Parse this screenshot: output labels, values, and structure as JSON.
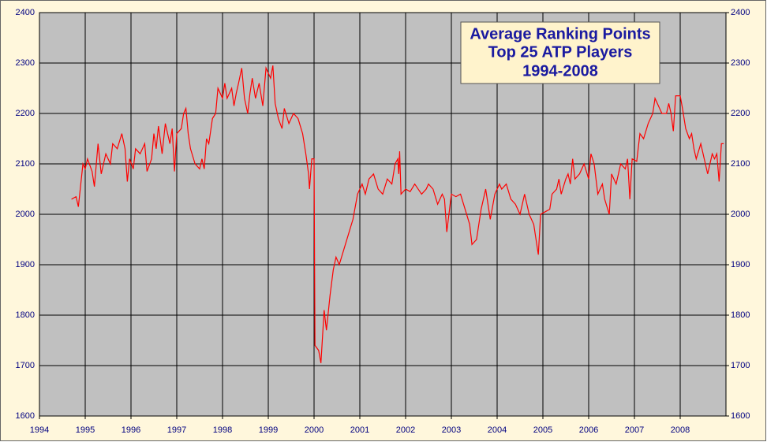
{
  "chart_data": {
    "type": "line",
    "title": [
      "Average Ranking Points",
      "Top 25 ATP Players",
      "1994-2008"
    ],
    "xlim": [
      1994,
      2009
    ],
    "xticks": [
      1994,
      1995,
      1996,
      1997,
      1998,
      1999,
      2000,
      2001,
      2002,
      2003,
      2004,
      2005,
      2006,
      2007,
      2008
    ],
    "ylim": [
      1600,
      2400
    ],
    "yticks": [
      1600,
      1700,
      1800,
      1900,
      2000,
      2100,
      2200,
      2300,
      2400
    ],
    "y2lim": [
      1600,
      2400
    ],
    "y2ticks": [
      1600,
      1700,
      1800,
      1900,
      2000,
      2100,
      2200,
      2300,
      2400
    ],
    "grid": true,
    "series": [
      {
        "color": "#ff0000",
        "x": [
          1994.7,
          1994.8,
          1994.85,
          1994.95,
          1995.0,
          1995.05,
          1995.15,
          1995.2,
          1995.28,
          1995.35,
          1995.45,
          1995.55,
          1995.6,
          1995.7,
          1995.8,
          1995.87,
          1995.92,
          1995.97,
          1996.05,
          1996.1,
          1996.2,
          1996.3,
          1996.35,
          1996.45,
          1996.5,
          1996.55,
          1996.6,
          1996.68,
          1996.75,
          1996.85,
          1996.9,
          1996.95,
          1997.0,
          1997.1,
          1997.15,
          1997.2,
          1997.25,
          1997.3,
          1997.4,
          1997.5,
          1997.55,
          1997.6,
          1997.65,
          1997.7,
          1997.78,
          1997.85,
          1997.9,
          1998.0,
          1998.05,
          1998.1,
          1998.2,
          1998.25,
          1998.3,
          1998.35,
          1998.42,
          1998.48,
          1998.55,
          1998.6,
          1998.65,
          1998.72,
          1998.8,
          1998.88,
          1998.95,
          1999.05,
          1999.1,
          1999.15,
          1999.22,
          1999.3,
          1999.35,
          1999.45,
          1999.55,
          1999.65,
          1999.75,
          1999.82,
          1999.88,
          1999.9,
          1999.95,
          2000.0,
          2000.02,
          2000.1,
          2000.15,
          2000.22,
          2000.27,
          2000.35,
          2000.42,
          2000.48,
          2000.55,
          2000.65,
          2000.75,
          2000.85,
          2000.95,
          2001.05,
          2001.12,
          2001.2,
          2001.3,
          2001.4,
          2001.5,
          2001.6,
          2001.7,
          2001.77,
          2001.83,
          2001.85,
          2001.87,
          2001.9,
          2002.0,
          2002.1,
          2002.2,
          2002.35,
          2002.45,
          2002.5,
          2002.6,
          2002.7,
          2002.8,
          2002.85,
          2002.9,
          2003.0,
          2003.1,
          2003.2,
          2003.3,
          2003.4,
          2003.45,
          2003.55,
          2003.65,
          2003.75,
          2003.85,
          2003.95,
          2004.05,
          2004.1,
          2004.2,
          2004.3,
          2004.4,
          2004.5,
          2004.6,
          2004.7,
          2004.8,
          2004.9,
          2004.95,
          2005.05,
          2005.15,
          2005.2,
          2005.3,
          2005.35,
          2005.4,
          2005.5,
          2005.55,
          2005.6,
          2005.65,
          2005.7,
          2005.8,
          2005.9,
          2006.0,
          2006.05,
          2006.12,
          2006.2,
          2006.3,
          2006.35,
          2006.45,
          2006.5,
          2006.6,
          2006.7,
          2006.8,
          2006.85,
          2006.9,
          2006.95,
          2007.05,
          2007.12,
          2007.2,
          2007.3,
          2007.4,
          2007.45,
          2007.55,
          2007.6,
          2007.7,
          2007.75,
          2007.8,
          2007.85,
          2007.9,
          2008.0,
          2008.05,
          2008.12,
          2008.2,
          2008.25,
          2008.3,
          2008.35,
          2008.45,
          2008.55,
          2008.6,
          2008.7,
          2008.75,
          2008.8,
          2008.85,
          2008.9,
          2008.95
        ],
        "values": [
          2030,
          2035,
          2015,
          2100,
          2090,
          2110,
          2085,
          2055,
          2140,
          2080,
          2120,
          2100,
          2140,
          2130,
          2160,
          2130,
          2065,
          2110,
          2090,
          2130,
          2120,
          2140,
          2085,
          2110,
          2160,
          2130,
          2175,
          2120,
          2180,
          2140,
          2170,
          2085,
          2160,
          2170,
          2200,
          2210,
          2160,
          2130,
          2100,
          2090,
          2110,
          2090,
          2150,
          2140,
          2190,
          2200,
          2250,
          2230,
          2260,
          2230,
          2250,
          2215,
          2240,
          2260,
          2290,
          2230,
          2200,
          2240,
          2270,
          2230,
          2260,
          2215,
          2290,
          2270,
          2295,
          2220,
          2190,
          2170,
          2210,
          2180,
          2200,
          2190,
          2160,
          2120,
          2080,
          2050,
          2110,
          2110,
          1740,
          1730,
          1705,
          1810,
          1770,
          1840,
          1890,
          1915,
          1900,
          1930,
          1960,
          1990,
          2040,
          2060,
          2040,
          2070,
          2080,
          2050,
          2040,
          2070,
          2060,
          2100,
          2110,
          2080,
          2125,
          2040,
          2050,
          2045,
          2060,
          2040,
          2050,
          2060,
          2050,
          2020,
          2040,
          2030,
          1965,
          2040,
          2035,
          2040,
          2010,
          1980,
          1940,
          1950,
          2010,
          2050,
          1990,
          2040,
          2060,
          2050,
          2060,
          2030,
          2020,
          2000,
          2040,
          2000,
          1980,
          1920,
          2000,
          2005,
          2010,
          2040,
          2050,
          2070,
          2040,
          2070,
          2080,
          2060,
          2110,
          2070,
          2080,
          2100,
          2070,
          2120,
          2100,
          2040,
          2060,
          2030,
          2000,
          2080,
          2060,
          2100,
          2090,
          2110,
          2030,
          2110,
          2105,
          2160,
          2150,
          2180,
          2200,
          2230,
          2210,
          2200,
          2200,
          2220,
          2200,
          2165,
          2235,
          2235,
          2210,
          2170,
          2150,
          2160,
          2130,
          2110,
          2140,
          2100,
          2080,
          2120,
          2110,
          2120,
          2065,
          2140,
          2140
        ]
      }
    ]
  }
}
